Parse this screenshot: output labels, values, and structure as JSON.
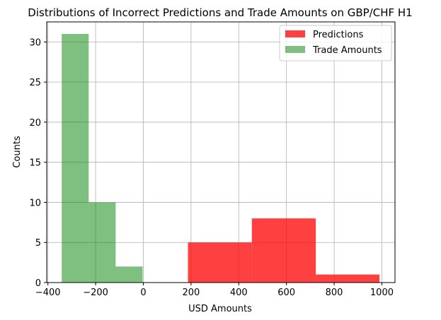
{
  "chart_data": {
    "type": "bar",
    "title": "Distributions of Incorrect Predictions and Trade Amounts on GBP/CHF H1",
    "xlabel": "USD Amounts",
    "ylabel": "Counts",
    "xlim": [
      -405,
      1055
    ],
    "ylim": [
      0,
      32.5
    ],
    "grid": true,
    "legend_position": "top-right",
    "xticks": [
      -400,
      -200,
      0,
      200,
      400,
      600,
      800,
      1000
    ],
    "xtick_labels": [
      "−400",
      "−200",
      "0",
      "200",
      "400",
      "600",
      "800",
      "1000"
    ],
    "yticks": [
      0,
      5,
      10,
      15,
      20,
      25,
      30
    ],
    "ytick_labels": [
      "0",
      "5",
      "10",
      "15",
      "20",
      "25",
      "30"
    ],
    "series": [
      {
        "name": "Predictions",
        "color": "#ff0000",
        "alpha": 0.75,
        "bins": [
          {
            "x0": 187,
            "x1": 455,
            "count": 5
          },
          {
            "x0": 455,
            "x1": 723,
            "count": 8
          },
          {
            "x0": 723,
            "x1": 990,
            "count": 1
          }
        ]
      },
      {
        "name": "Trade Amounts",
        "color": "#008000",
        "alpha": 0.5,
        "bins": [
          {
            "x0": -342,
            "x1": -229,
            "count": 31
          },
          {
            "x0": -229,
            "x1": -116,
            "count": 10
          },
          {
            "x0": -116,
            "x1": -3,
            "count": 2
          }
        ]
      }
    ]
  }
}
